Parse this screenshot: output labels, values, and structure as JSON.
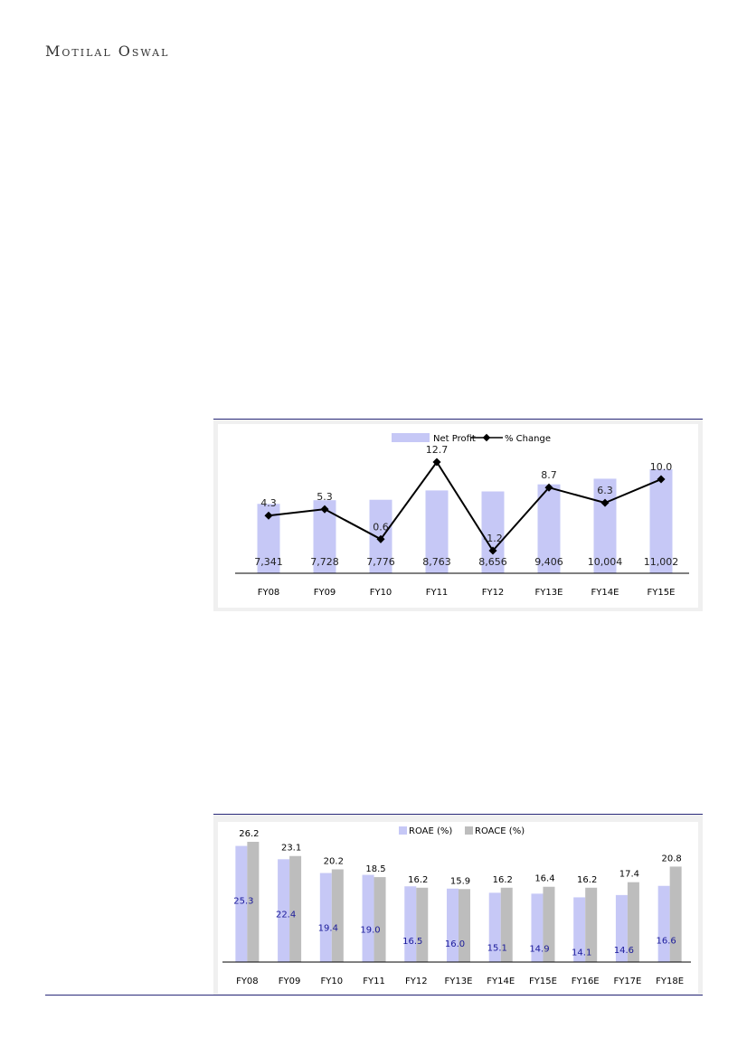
{
  "header": {
    "logo_text": "Motilal Oswal"
  },
  "chart_data": [
    {
      "type": "bar",
      "categories": [
        "FY08",
        "FY09",
        "FY10",
        "FY11",
        "FY12",
        "FY13E",
        "FY14E",
        "FY15E"
      ],
      "series": [
        {
          "name": "Net Profit",
          "kind": "bar",
          "color": "#c6c8f6",
          "values": [
            7341,
            7728,
            7776,
            8763,
            8656,
            9406,
            10004,
            11002
          ],
          "labels": [
            "7,341",
            "7,728",
            "7,776",
            "8,763",
            "8,656",
            "9,406",
            "10,004",
            "11,002"
          ]
        },
        {
          "name": "% Change",
          "kind": "line",
          "color": "#000000",
          "values": [
            4.3,
            5.3,
            0.6,
            12.7,
            -1.2,
            8.7,
            6.3,
            10.0
          ],
          "labels": [
            "4.3",
            "5.3",
            "0.6",
            "12.7",
            "-1.2",
            "8.7",
            "6.3",
            "10.0"
          ]
        }
      ],
      "legend": "top-center"
    },
    {
      "type": "bar",
      "categories": [
        "FY08",
        "FY09",
        "FY10",
        "FY11",
        "FY12",
        "FY13E",
        "FY14E",
        "FY15E",
        "FY16E",
        "FY17E",
        "FY18E"
      ],
      "series": [
        {
          "name": "ROAE (%)",
          "color": "#c6c8f6",
          "values": [
            25.3,
            22.4,
            19.4,
            19.0,
            16.5,
            16.0,
            15.1,
            14.9,
            14.1,
            14.6,
            16.6
          ],
          "labels": [
            "25.3",
            "22.4",
            "19.4",
            "19.0",
            "16.5",
            "16.0",
            "15.1",
            "14.9",
            "14.1",
            "14.6",
            "16.6"
          ]
        },
        {
          "name": "ROACE (%)",
          "color": "#bdbdbd",
          "values": [
            26.2,
            23.1,
            20.2,
            18.5,
            16.2,
            15.9,
            16.2,
            16.4,
            16.2,
            17.4,
            20.8
          ],
          "labels": [
            "26.2",
            "23.1",
            "20.2",
            "18.5",
            "16.2",
            "15.9",
            "16.2",
            "16.4",
            "16.2",
            "17.4",
            "20.8"
          ]
        }
      ],
      "legend": "top-center"
    }
  ]
}
